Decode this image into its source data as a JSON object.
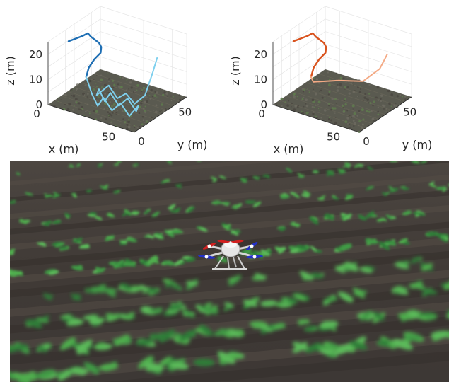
{
  "chart_data": [
    {
      "type": "line3d",
      "series": [
        {
          "values_xyz": [
            [
              -10,
              40,
              14
            ],
            [
              -5,
              40,
              16
            ],
            [
              0,
              40,
              18
            ],
            [
              4,
              39,
              20
            ],
            [
              8,
              36,
              20
            ],
            [
              16,
              32,
              20
            ],
            [
              20,
              28,
              20
            ],
            [
              22,
              24,
              19
            ],
            [
              20,
              20,
              17
            ],
            [
              18,
              17,
              14
            ],
            [
              18,
              14,
              11
            ]
          ],
          "color": "#1f6fb4"
        },
        {
          "values_xyz": [
            [
              18,
              14,
              11
            ],
            [
              22,
              14,
              5
            ],
            [
              26,
              14,
              1
            ],
            [
              30,
              14,
              5
            ],
            [
              36,
              14,
              1
            ],
            [
              42,
              14,
              5
            ],
            [
              48,
              14,
              1
            ],
            [
              52,
              18,
              5
            ],
            [
              48,
              22,
              1
            ],
            [
              42,
              22,
              5
            ],
            [
              36,
              22,
              1
            ],
            [
              30,
              22,
              5
            ],
            [
              26,
              22,
              1
            ],
            [
              22,
              22,
              5
            ],
            [
              18,
              26,
              1
            ],
            [
              24,
              30,
              5
            ],
            [
              30,
              30,
              1
            ],
            [
              36,
              30,
              4
            ],
            [
              42,
              30,
              1
            ],
            [
              48,
              32,
              5
            ],
            [
              52,
              34,
              14
            ],
            [
              54,
              36,
              20
            ]
          ],
          "color": "#7fd0ee"
        }
      ],
      "xlabel": "x (m)",
      "ylabel": "y (m)",
      "zlabel": "z (m)",
      "x_ticks": [
        "0",
        "50"
      ],
      "y_ticks": [
        "0",
        "50"
      ],
      "z_ticks": [
        "0",
        "10",
        "20"
      ],
      "xlim": [
        0,
        60
      ],
      "ylim": [
        0,
        60
      ],
      "zlim": [
        0,
        25
      ],
      "grid": true
    },
    {
      "type": "line3d",
      "series": [
        {
          "values_xyz": [
            [
              -10,
              40,
              14
            ],
            [
              -5,
              40,
              16
            ],
            [
              0,
              40,
              18
            ],
            [
              4,
              39,
              20
            ],
            [
              8,
              36,
              20
            ],
            [
              16,
              32,
              20
            ],
            [
              20,
              28,
              20
            ],
            [
              22,
              24,
              19
            ],
            [
              20,
              20,
              17
            ],
            [
              18,
              17,
              14
            ],
            [
              18,
              14,
              11
            ]
          ],
          "color": "#d9531e"
        },
        {
          "values_xyz": [
            [
              18,
              14,
              11
            ],
            [
              19,
              15,
              9
            ],
            [
              22,
              18,
              9
            ],
            [
              26,
              22,
              9
            ],
            [
              30,
              26,
              9
            ],
            [
              36,
              30,
              9
            ],
            [
              42,
              34,
              9
            ],
            [
              50,
              40,
              14
            ],
            [
              54,
              42,
              20
            ]
          ],
          "color": "#f4aa85"
        }
      ],
      "xlabel": "x (m)",
      "ylabel": "y (m)",
      "zlabel": "z (m)",
      "x_ticks": [
        "0",
        "50"
      ],
      "y_ticks": [
        "0",
        "50"
      ],
      "z_ticks": [
        "0",
        "10",
        "20"
      ],
      "xlim": [
        0,
        60
      ],
      "ylim": [
        0,
        60
      ],
      "zlim": [
        0,
        25
      ],
      "grid": true
    }
  ],
  "scene": {
    "ground_color": "#3f3a36",
    "crop_color": "#3f9a45",
    "drone": {
      "body_color": "#e6e6e6",
      "front_rotor_color": "#d21f1f",
      "rear_rotor_color": "#2330c8"
    }
  }
}
